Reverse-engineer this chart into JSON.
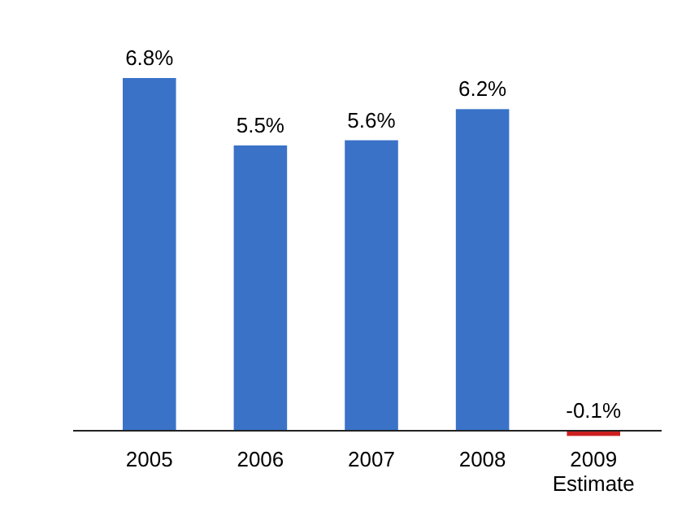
{
  "chart_data": {
    "type": "bar",
    "categories": [
      "2005",
      "2006",
      "2007",
      "2008",
      "2009\nEstimate"
    ],
    "values": [
      6.8,
      5.5,
      5.6,
      6.2,
      -0.1
    ],
    "colors": [
      "#3a72c8",
      "#3a72c8",
      "#3a72c8",
      "#3a72c8",
      "#cc2020"
    ],
    "value_labels": [
      "6.8%",
      "5.5%",
      "5.6%",
      "6.2%",
      "-0.1%"
    ]
  }
}
